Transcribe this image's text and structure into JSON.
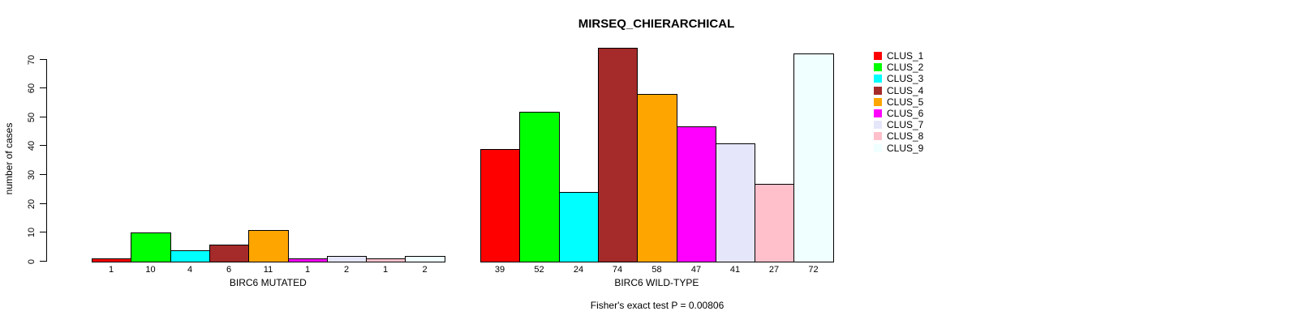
{
  "chart_data": {
    "type": "bar",
    "title": "MIRSEQ_CHIERARCHICAL",
    "ylabel": "number of cases",
    "xlabel": "",
    "ylim": [
      0,
      70
    ],
    "yticks": [
      0,
      10,
      20,
      30,
      40,
      50,
      60,
      70
    ],
    "grid": false,
    "legend_position": "right",
    "background": "#FFFFFF",
    "axis_color": "#000000",
    "bar_border_color": "#000000",
    "categories": [
      "BIRC6 MUTATED",
      "BIRC6 WILD-TYPE"
    ],
    "series": [
      {
        "name": "CLUS_1",
        "color": "#FF0000",
        "values": [
          1,
          39
        ]
      },
      {
        "name": "CLUS_2",
        "color": "#00FF00",
        "values": [
          10,
          52
        ]
      },
      {
        "name": "CLUS_3",
        "color": "#00FFFF",
        "values": [
          4,
          24
        ]
      },
      {
        "name": "CLUS_4",
        "color": "#A52A2A",
        "values": [
          6,
          74
        ]
      },
      {
        "name": "CLUS_5",
        "color": "#FFA500",
        "values": [
          11,
          58
        ]
      },
      {
        "name": "CLUS_6",
        "color": "#FF00FF",
        "values": [
          1,
          47
        ]
      },
      {
        "name": "CLUS_7",
        "color": "#E6E6FA",
        "values": [
          2,
          41
        ]
      },
      {
        "name": "CLUS_8",
        "color": "#FFC0CB",
        "values": [
          1,
          27
        ]
      },
      {
        "name": "CLUS_9",
        "color": "#F0FFFF",
        "values": [
          2,
          72
        ]
      }
    ],
    "annotation": "Fisher's exact test P = 0.00806"
  }
}
